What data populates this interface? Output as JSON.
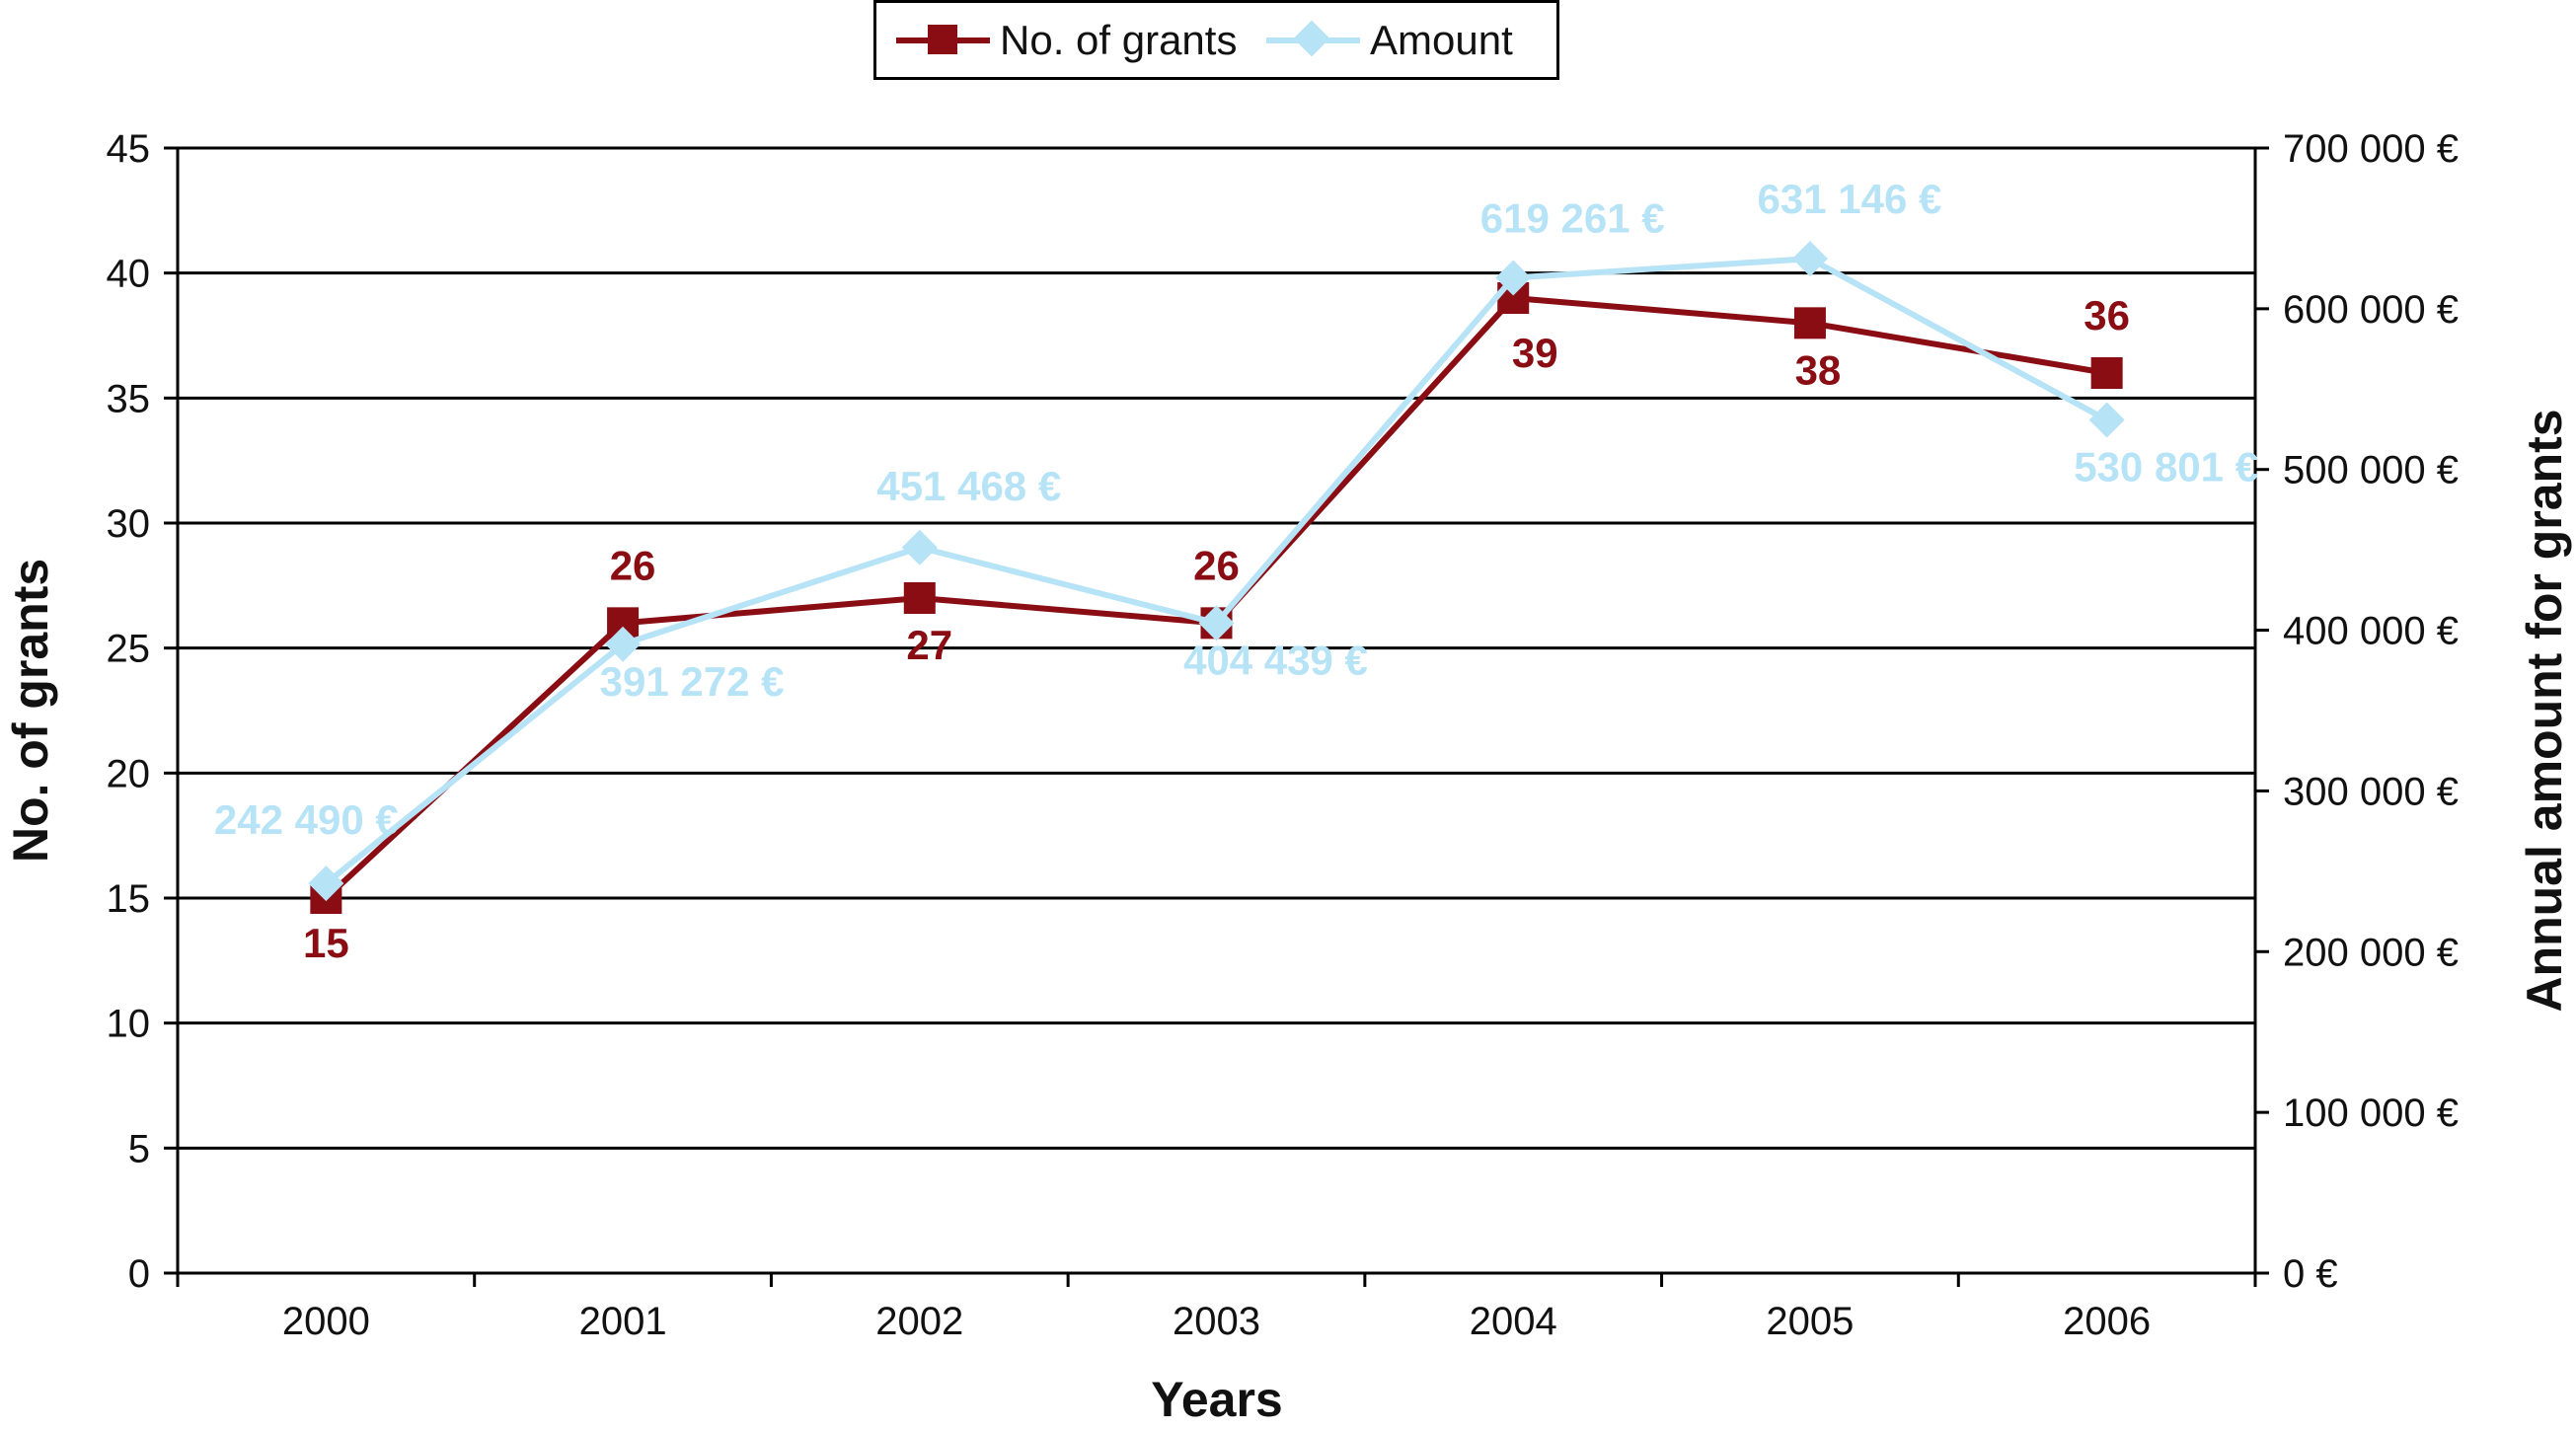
{
  "chart_data": {
    "type": "line",
    "title": "",
    "xlabel": "Years",
    "ylabel": "No. of grants",
    "y2label": "Annual amount for grants",
    "categories": [
      "2000",
      "2001",
      "2002",
      "2003",
      "2004",
      "2005",
      "2006"
    ],
    "ylim": [
      0,
      45
    ],
    "yticks": [
      "0",
      "5",
      "10",
      "15",
      "20",
      "25",
      "30",
      "35",
      "40",
      "45"
    ],
    "y2lim": [
      0,
      700000
    ],
    "y2ticks": [
      "0 €",
      "100 000 €",
      "200 000 €",
      "300 000 €",
      "400 000 €",
      "500 000 €",
      "600 000 €",
      "700 000 €"
    ],
    "grid": true,
    "legend_position": "top-center",
    "series": [
      {
        "name": "No. of grants",
        "axis": "left",
        "color": "#8b0d14",
        "marker": "square",
        "values": [
          15,
          26,
          27,
          26,
          39,
          38,
          36
        ],
        "labels": [
          "15",
          "26",
          "27",
          "26",
          "39",
          "38",
          "36"
        ]
      },
      {
        "name": "Amount",
        "axis": "right",
        "color": "#b7e3f7",
        "marker": "diamond",
        "values": [
          242490,
          391272,
          451468,
          404439,
          619261,
          631146,
          530801
        ],
        "labels": [
          "242 490 €",
          "391 272 €",
          "451 468 €",
          "404 439 €",
          "619 261 €",
          "631 146 €",
          "530 801 €"
        ]
      }
    ]
  }
}
